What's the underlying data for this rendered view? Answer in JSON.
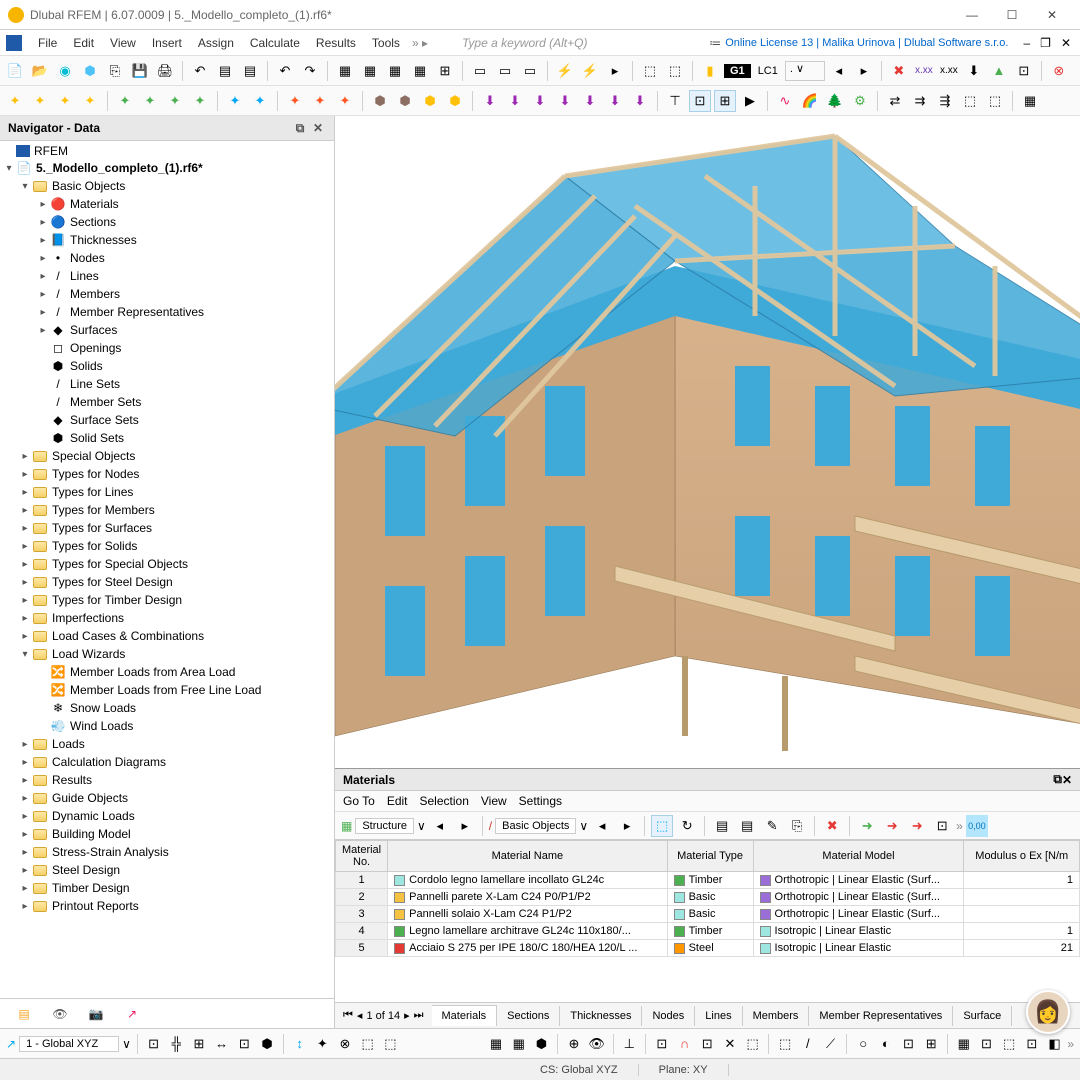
{
  "titlebar": {
    "title": "Dlubal RFEM | 6.07.0009 | 5._Modello_completo_(1).rf6*"
  },
  "menubar": {
    "items": [
      "File",
      "Edit",
      "View",
      "Insert",
      "Assign",
      "Calculate",
      "Results",
      "Tools"
    ],
    "keyword_placeholder": "Type a keyword (Alt+Q)",
    "license": "Online License 13 | Malika Urinova | Dlubal Software s.r.o."
  },
  "toolbars": {
    "lc_badge": "G1",
    "lc_text": "LC1"
  },
  "navigator": {
    "title": "Navigator - Data",
    "root": "RFEM",
    "project": "5._Modello_completo_(1).rf6*",
    "basic_objects_label": "Basic Objects",
    "basic_objects": [
      "Materials",
      "Sections",
      "Thicknesses",
      "Nodes",
      "Lines",
      "Members",
      "Member Representatives",
      "Surfaces",
      "Openings",
      "Solids",
      "Line Sets",
      "Member Sets",
      "Surface Sets",
      "Solid Sets"
    ],
    "folders": [
      "Special Objects",
      "Types for Nodes",
      "Types for Lines",
      "Types for Members",
      "Types for Surfaces",
      "Types for Solids",
      "Types for Special Objects",
      "Types for Steel Design",
      "Types for Timber Design",
      "Imperfections",
      "Load Cases & Combinations"
    ],
    "load_wizards_label": "Load Wizards",
    "load_wizards": [
      "Member Loads from Area Load",
      "Member Loads from Free Line Load",
      "Snow Loads",
      "Wind Loads"
    ],
    "folders2": [
      "Loads",
      "Calculation Diagrams",
      "Results",
      "Guide Objects",
      "Dynamic Loads",
      "Building Model",
      "Stress-Strain Analysis",
      "Steel Design",
      "Timber Design",
      "Printout Reports"
    ]
  },
  "model": {
    "wall_color": "#d9b38c",
    "wall_shade": "#c9a37c",
    "window_color": "#3fa9d8",
    "roof_color": "#3fa9d8",
    "beam_color": "#e0c79e",
    "floor_color": "#e6cfa8"
  },
  "materials": {
    "title": "Materials",
    "menu": [
      "Go To",
      "Edit",
      "Selection",
      "View",
      "Settings"
    ],
    "sel1": "Structure",
    "sel2": "Basic Objects",
    "columns": [
      "Material\nNo.",
      "Material Name",
      "Material\nType",
      "Material Model",
      "Modulus o\nEx [N/m"
    ],
    "rows": [
      {
        "no": "1",
        "name": "Cordolo legno lamellare incollato GL24c",
        "name_c": "#9ee6e0",
        "type": "Timber",
        "type_c": "#4caf50",
        "model": "Orthotropic | Linear Elastic (Surf...",
        "model_c": "#9b6dd7",
        "ex": "1"
      },
      {
        "no": "2",
        "name": "Pannelli parete X-Lam C24 P0/P1/P2",
        "name_c": "#f5c242",
        "type": "Basic",
        "type_c": "#9ee6e0",
        "model": "Orthotropic | Linear Elastic (Surf...",
        "model_c": "#9b6dd7",
        "ex": ""
      },
      {
        "no": "3",
        "name": "Pannelli solaio X-Lam C24 P1/P2",
        "name_c": "#f5c242",
        "type": "Basic",
        "type_c": "#9ee6e0",
        "model": "Orthotropic | Linear Elastic (Surf...",
        "model_c": "#9b6dd7",
        "ex": ""
      },
      {
        "no": "4",
        "name": "Legno lamellare architrave GL24c 110x180/...",
        "name_c": "#4caf50",
        "type": "Timber",
        "type_c": "#4caf50",
        "model": "Isotropic | Linear Elastic",
        "model_c": "#9ee6e0",
        "ex": "1"
      },
      {
        "no": "5",
        "name": "Acciaio S 275 per IPE 180/C 180/HEA 120/L ...",
        "name_c": "#e53935",
        "type": "Steel",
        "type_c": "#ff9800",
        "model": "Isotropic | Linear Elastic",
        "model_c": "#9ee6e0",
        "ex": "21"
      }
    ],
    "pager": "1 of 14",
    "tabs": [
      "Materials",
      "Sections",
      "Thicknesses",
      "Nodes",
      "Lines",
      "Members",
      "Member Representatives",
      "Surface"
    ]
  },
  "bottombar": {
    "cs": "1 - Global XYZ"
  },
  "statusbar": {
    "cs": "CS: Global XYZ",
    "plane": "Plane: XY"
  }
}
